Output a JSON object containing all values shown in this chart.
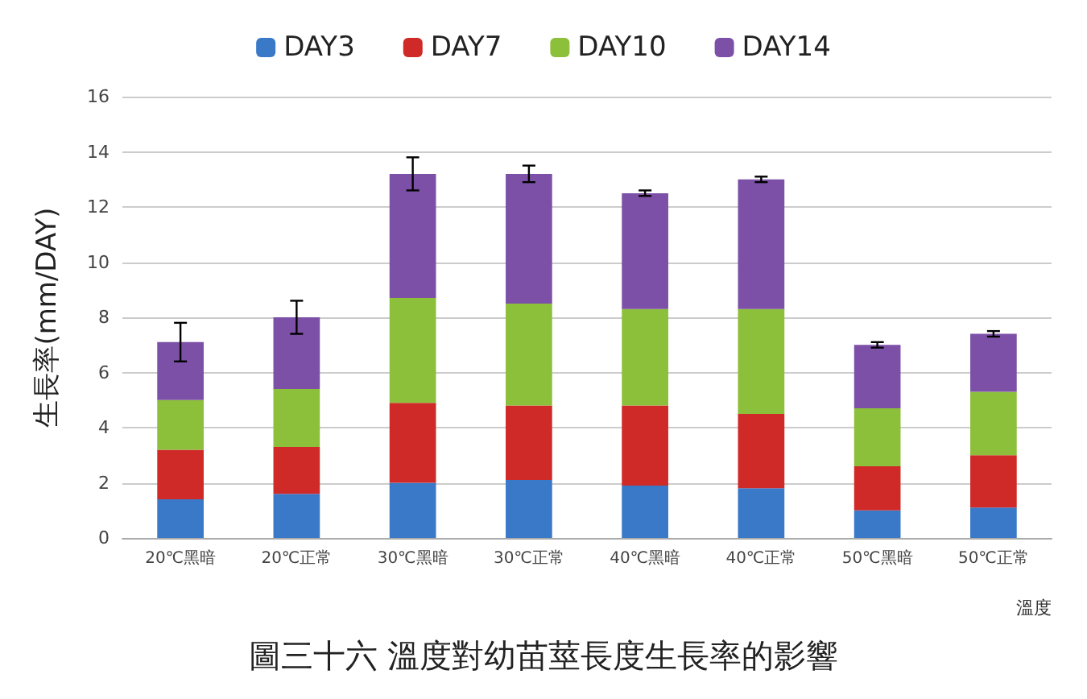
{
  "chart_data": {
    "type": "bar",
    "stacked": true,
    "title": "圖三十六 溫度對幼苗莖長度生長率的影響",
    "xlabel": "溫度",
    "ylabel": "生長率(mm/DAY)",
    "categories": [
      "20℃黑暗",
      "20℃正常",
      "30℃黑暗",
      "30℃正常",
      "40℃黑暗",
      "40℃正常",
      "50℃黑暗",
      "50℃正常"
    ],
    "series": [
      {
        "name": "DAY3",
        "color": "#3a78c8",
        "values": [
          1.4,
          1.6,
          2.0,
          2.1,
          1.9,
          1.8,
          1.0,
          1.1
        ]
      },
      {
        "name": "DAY7",
        "color": "#d02a28",
        "values": [
          1.8,
          1.7,
          2.9,
          2.7,
          2.9,
          2.7,
          1.6,
          1.9
        ]
      },
      {
        "name": "DAY10",
        "color": "#8cbf3a",
        "values": [
          1.8,
          2.1,
          3.8,
          3.7,
          3.5,
          3.8,
          2.1,
          2.3
        ]
      },
      {
        "name": "DAY14",
        "color": "#7d50a8",
        "values": [
          2.1,
          2.6,
          4.5,
          4.7,
          4.2,
          4.7,
          2.3,
          2.1
        ],
        "errors": [
          0.7,
          0.6,
          0.6,
          0.3,
          0.1,
          0.1,
          0.1,
          0.1
        ]
      }
    ],
    "ylim": [
      0,
      16
    ],
    "yticks": [
      0,
      2,
      4,
      6,
      8,
      10,
      12,
      14,
      16
    ],
    "grid": "y",
    "legend": "top"
  }
}
